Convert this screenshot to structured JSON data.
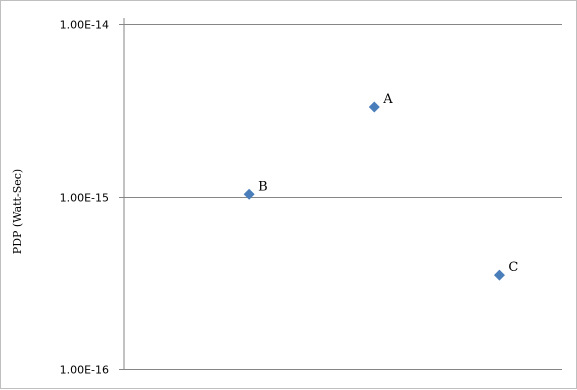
{
  "chart_data": {
    "type": "scatter",
    "title": "",
    "xlabel": "",
    "ylabel": "PDP (Watt-Sec)",
    "y_scale": "log",
    "ylim": [
      1e-16,
      1e-14
    ],
    "xlim": [
      0,
      3.5
    ],
    "y_ticks": [
      {
        "value": 1e-14,
        "label": "1.00E-14"
      },
      {
        "value": 1e-15,
        "label": "1.00E-15"
      },
      {
        "value": 1e-16,
        "label": "1.00E-16"
      }
    ],
    "grid": "horizontal major gridlines",
    "legend": "none",
    "marker": "diamond",
    "marker_color": "#4a7ebb",
    "points": [
      {
        "label": "A",
        "x": 2,
        "y": 3.3e-15
      },
      {
        "label": "B",
        "x": 1,
        "y": 1.03e-15
      },
      {
        "label": "C",
        "x": 3,
        "y": 3.5e-16
      }
    ]
  }
}
